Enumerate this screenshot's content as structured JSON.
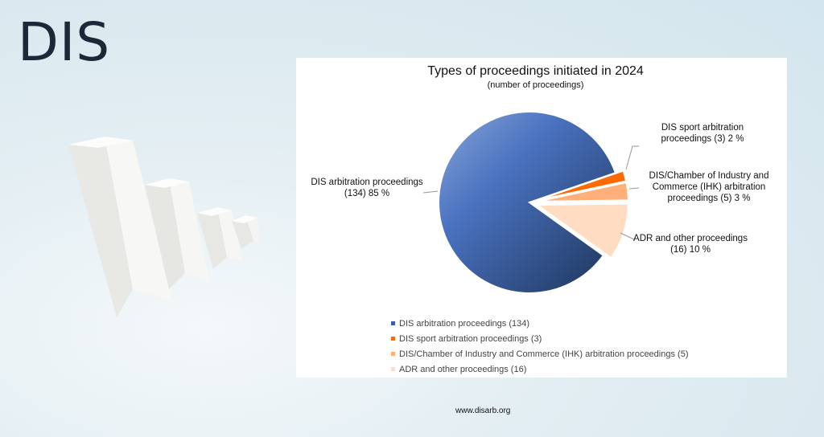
{
  "brand": "DIS",
  "footer_url": "www.disarb.org",
  "chart_data": {
    "type": "pie",
    "title": "Types of proceedings initiated in 2024",
    "subtitle": "(number of proceedings)",
    "slices": [
      {
        "name": "DIS sport arbitration proceedings",
        "value": 3,
        "percent": 2,
        "color": "#ff6a00",
        "label": "DIS sport arbitration proceedings (3) 2 %",
        "legend": "DIS sport arbitration proceedings (3)",
        "exploded": true
      },
      {
        "name": "DIS/Chamber of Industry and Commerce (IHK) arbitration proceedings",
        "value": 5,
        "percent": 3,
        "color": "#ffb07a",
        "label": "DIS/Chamber of Industry and Commerce (IHK) arbitration proceedings (5) 3 %",
        "legend": "DIS/Chamber of Industry and Commerce (IHK) arbitration proceedings (5)",
        "exploded": true
      },
      {
        "name": "ADR and other proceedings",
        "value": 16,
        "percent": 10,
        "color": "#ffdcc2",
        "label": "ADR and other proceedings (16) 10 %",
        "legend": "ADR and other proceedings (16)",
        "exploded": true
      },
      {
        "name": "DIS arbitration proceedings",
        "value": 134,
        "percent": 85,
        "color": "#4a72c0",
        "label": "DIS arbitration proceedings (134) 85 %",
        "legend": "DIS arbitration proceedings (134)",
        "exploded": false
      }
    ],
    "legend_order": [
      3,
      0,
      1,
      2
    ],
    "legend_position": "bottom"
  }
}
